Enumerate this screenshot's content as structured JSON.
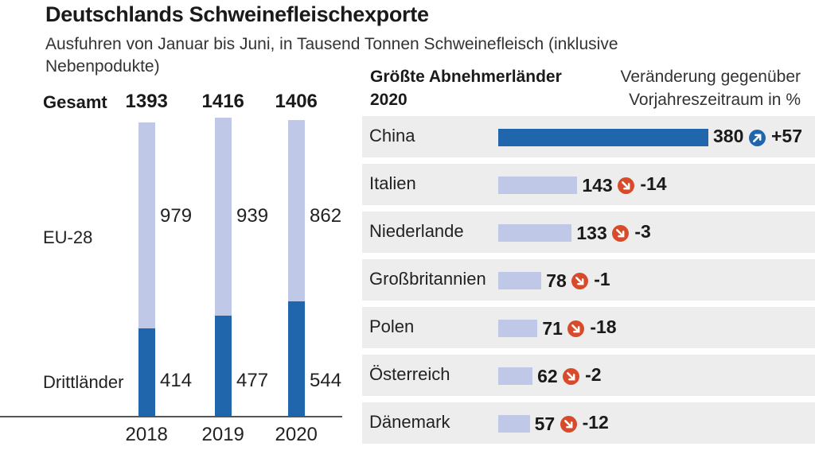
{
  "title": "Deutschlands Schweinefleischexporte",
  "subtitle": "Ausfuhren von Januar bis Juni, in Tausend Tonnen Schweinefleisch (inklusive Nebenpodukte)",
  "colors": {
    "eu": "#bfc8e6",
    "third": "#1f66ad",
    "up_arrow": "#1f66ad",
    "down_arrow": "#d94a2a",
    "row_shade": "#ededed"
  },
  "chart_data": [
    {
      "type": "bar",
      "stacked": true,
      "title": "Ausfuhren von Januar bis Juni, in Tausend Tonnen Schweinefleisch (inklusive Nebenpodukte)",
      "total_label": "Gesamt",
      "categories": [
        "2018",
        "2019",
        "2020"
      ],
      "totals": [
        1393,
        1416,
        1406
      ],
      "series": [
        {
          "name": "EU-28",
          "values": [
            979,
            939,
            862
          ]
        },
        {
          "name": "Drittländer",
          "values": [
            414,
            477,
            544
          ]
        }
      ]
    },
    {
      "type": "bar",
      "orientation": "horizontal",
      "title": "Größte Abnehmerländer 2020",
      "title_lines": [
        "Größte Abnehmerländer",
        "2020"
      ],
      "change_note": "Veränderung gegenüber Vorjahreszeitraum in %",
      "change_note_lines": [
        "Veränderung gegenüber",
        "Vorjahreszeitraum in %"
      ],
      "categories": [
        "China",
        "Italien",
        "Niederlande",
        "Großbritannien",
        "Polen",
        "Österreich",
        "Dänemark"
      ],
      "values": [
        380,
        143,
        133,
        78,
        71,
        62,
        57
      ],
      "changes": [
        "+57",
        "-14",
        "-3",
        "-1",
        "-18",
        "-2",
        "-12"
      ],
      "directions": [
        "up",
        "down",
        "down",
        "down",
        "down",
        "down",
        "down"
      ]
    }
  ]
}
